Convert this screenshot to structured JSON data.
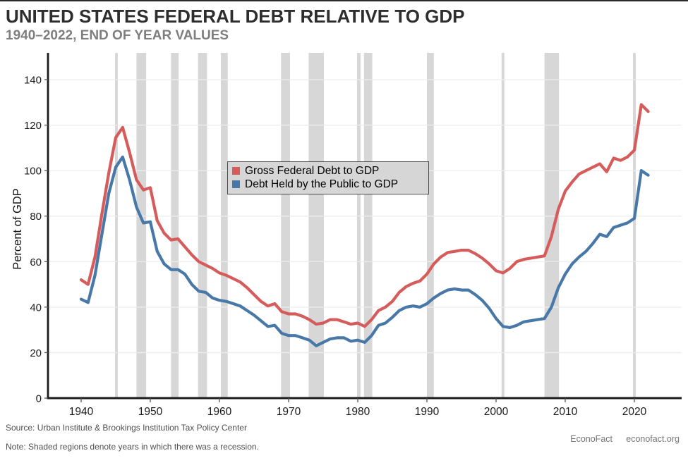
{
  "chart_data": {
    "type": "line",
    "title": "UNITED STATES FEDERAL DEBT RELATIVE TO GDP",
    "subtitle": "1940–2022, END OF YEAR VALUES",
    "ylabel": "Percent of GDP",
    "xlabel": "",
    "ylim": [
      0,
      150
    ],
    "yticks": [
      0,
      20,
      40,
      60,
      80,
      100,
      120,
      140
    ],
    "xticks": [
      1940,
      1950,
      1960,
      1970,
      1980,
      1990,
      2000,
      2010,
      2020
    ],
    "grid": "horizontal",
    "legend_position": "upper-center",
    "years": [
      1940,
      1941,
      1942,
      1943,
      1944,
      1945,
      1946,
      1947,
      1948,
      1949,
      1950,
      1951,
      1952,
      1953,
      1954,
      1955,
      1956,
      1957,
      1958,
      1959,
      1960,
      1961,
      1962,
      1963,
      1964,
      1965,
      1966,
      1967,
      1968,
      1969,
      1970,
      1971,
      1972,
      1973,
      1974,
      1975,
      1976,
      1977,
      1978,
      1979,
      1980,
      1981,
      1982,
      1983,
      1984,
      1985,
      1986,
      1987,
      1988,
      1989,
      1990,
      1991,
      1992,
      1993,
      1994,
      1995,
      1996,
      1997,
      1998,
      1999,
      2000,
      2001,
      2002,
      2003,
      2004,
      2005,
      2006,
      2007,
      2008,
      2009,
      2010,
      2011,
      2012,
      2013,
      2014,
      2015,
      2016,
      2017,
      2018,
      2019,
      2020,
      2021,
      2022
    ],
    "series": [
      {
        "name": "Gross Federal Debt to GDP",
        "color": "#d65c5c",
        "values": [
          52,
          50,
          62,
          81,
          99,
          114.5,
          119,
          108,
          96,
          91.5,
          92.5,
          78,
          72.5,
          69.5,
          70,
          66.5,
          63,
          60,
          58.5,
          57,
          55,
          54,
          52.5,
          51,
          48.5,
          45.5,
          42.5,
          40.5,
          41.5,
          38,
          37,
          37,
          36,
          34.5,
          32.5,
          33,
          34.5,
          34.5,
          33.5,
          32.5,
          33,
          31.5,
          34.5,
          38.5,
          40,
          42.5,
          46.5,
          49,
          50.5,
          51.5,
          54.5,
          59,
          62,
          64,
          64.5,
          65,
          65,
          63.5,
          61.5,
          59,
          56,
          55,
          57,
          60,
          61,
          61.5,
          62,
          62.5,
          71,
          83,
          91,
          95,
          98.5,
          100,
          101.5,
          103,
          99.5,
          105.5,
          104.5,
          106,
          109,
          129,
          126
        ]
      },
      {
        "name": "Debt Held by the Public to GDP",
        "color": "#4878a8",
        "values": [
          43.5,
          42,
          54,
          72,
          90,
          101.5,
          106,
          96,
          84,
          77,
          77.5,
          64.5,
          59,
          56.5,
          56.5,
          54.5,
          50,
          47,
          46.5,
          44,
          43,
          42.5,
          41.5,
          40.5,
          38.5,
          36.5,
          34,
          31.5,
          32,
          28.5,
          27.5,
          27.5,
          26.5,
          25.5,
          23,
          24.5,
          26,
          26.5,
          26.5,
          25,
          25.5,
          24.5,
          27.5,
          32,
          33,
          35.5,
          38.5,
          40,
          40.5,
          40,
          41.5,
          44,
          46,
          47.5,
          48,
          47.5,
          47.5,
          45.5,
          43,
          39.5,
          35,
          31.5,
          31,
          32,
          33.5,
          34,
          34.5,
          35,
          40,
          48.5,
          54.5,
          59,
          62,
          64.5,
          68,
          72,
          71,
          75,
          76,
          77,
          79,
          100,
          98
        ]
      }
    ],
    "recessions": [
      [
        1944.9,
        1945.3
      ],
      [
        1948.0,
        1949.4
      ],
      [
        1953.0,
        1954.1
      ],
      [
        1956.9,
        1958.2
      ],
      [
        1960.2,
        1961.2
      ],
      [
        1968.9,
        1970.2
      ],
      [
        1972.9,
        1975.1
      ],
      [
        1979.9,
        1980.4
      ],
      [
        1980.9,
        1982.1
      ],
      [
        1990.0,
        1991.0
      ],
      [
        2000.8,
        2001.2
      ],
      [
        2007.0,
        2009.1
      ],
      [
        2019.8,
        2020.2
      ]
    ],
    "recession_band_color": "#d7d7d7"
  },
  "footer": {
    "source": "Source: Urban Institute & Brookings Institution Tax Policy Center",
    "note": "Note: Shaded regions denote years in which there was a recession.",
    "brand": "EconoFact",
    "site": "econofact.org"
  }
}
